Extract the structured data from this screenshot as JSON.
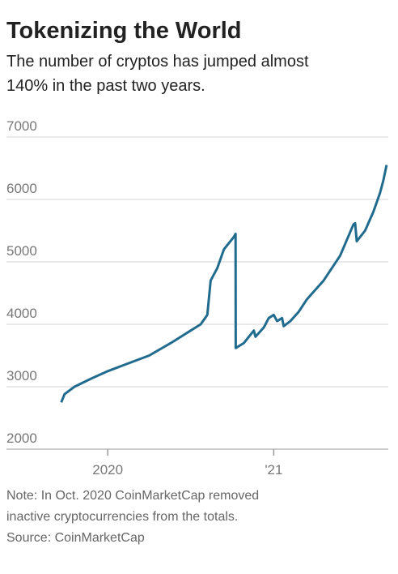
{
  "chart_data": {
    "type": "line",
    "title": "Tokenizing the World",
    "subtitle": [
      "The number of cryptos has jumped almost",
      "140% in the past two years."
    ],
    "note": [
      "Note: In Oct. 2020 CoinMarketCap removed",
      "inactive cryptocurrencies from the totals."
    ],
    "source": "Source: CoinMarketCap",
    "x": [
      2019.72,
      2019.74,
      2019.8,
      2019.9,
      2020.0,
      2020.12,
      2020.25,
      2020.38,
      2020.5,
      2020.56,
      2020.6,
      2020.62,
      2020.66,
      2020.7,
      2020.76,
      2020.77,
      2020.771,
      2020.82,
      2020.88,
      2020.89,
      2020.94,
      2020.97,
      2021.0,
      2021.02,
      2021.05,
      2021.06,
      2021.1,
      2021.15,
      2021.2,
      2021.3,
      2021.4,
      2021.48,
      2021.49,
      2021.5,
      2021.55,
      2021.6,
      2021.64,
      2021.66,
      2021.68
    ],
    "series": [
      {
        "color": "#216b8e",
        "values": [
          2750,
          2880,
          3000,
          3130,
          3250,
          3370,
          3500,
          3700,
          3900,
          4000,
          4150,
          4700,
          4900,
          5200,
          5400,
          5450,
          3620,
          3700,
          3900,
          3800,
          3950,
          4100,
          4150,
          4050,
          4100,
          3970,
          4050,
          4200,
          4400,
          4700,
          5100,
          5600,
          5620,
          5330,
          5500,
          5800,
          6100,
          6300,
          6550
        ]
      }
    ],
    "xlim": [
      2019.39,
      2021.69
    ],
    "xticks": [
      2020,
      {
        "value": 2021,
        "label": "'21"
      }
    ],
    "ylim": [
      2000,
      7000
    ],
    "yticks": [
      2000,
      3000,
      4000,
      5000,
      6000,
      7000
    ],
    "grid": true
  }
}
